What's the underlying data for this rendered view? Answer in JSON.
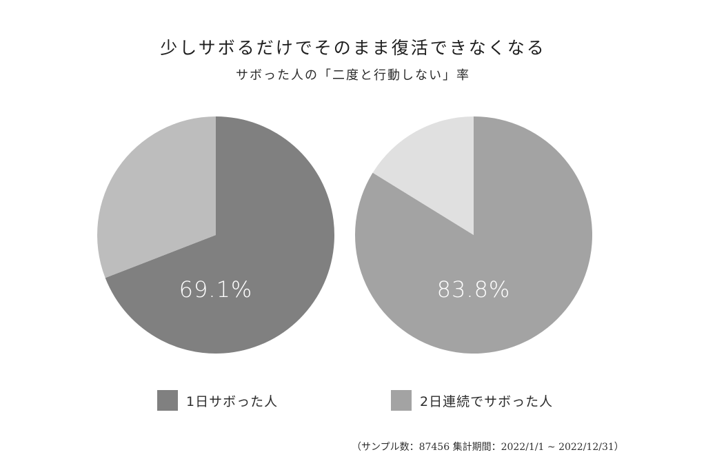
{
  "header": {
    "title": "少しサボるだけでそのまま復活できなくなる",
    "subtitle": "サボった人の「二度と行動しない」率"
  },
  "colors": {
    "series_dark": "#808080",
    "series_dark_rest": "#bdbdbd",
    "series_mid": "#a3a3a3",
    "series_mid_rest": "#e0e0e0",
    "label_text": "#ffffff"
  },
  "chart_data": [
    {
      "type": "pie",
      "title": "",
      "series_name": "1日サボった人",
      "slices": [
        {
          "label": "二度と行動しない",
          "value": 69.1
        },
        {
          "label": "",
          "value": 30.9
        }
      ],
      "value_label": "69.1%"
    },
    {
      "type": "pie",
      "title": "",
      "series_name": "2日連続でサボった人",
      "slices": [
        {
          "label": "二度と行動しない",
          "value": 83.8
        },
        {
          "label": "",
          "value": 16.2
        }
      ],
      "value_label": "83.8%"
    }
  ],
  "legend": {
    "items": [
      {
        "label": "1日サボった人",
        "color": "#808080"
      },
      {
        "label": "2日連続でサボった人",
        "color": "#a3a3a3"
      }
    ]
  },
  "footnote": "（サンプル数：87456 集計期間：2022/1/1 ~ 2022/12/31）"
}
